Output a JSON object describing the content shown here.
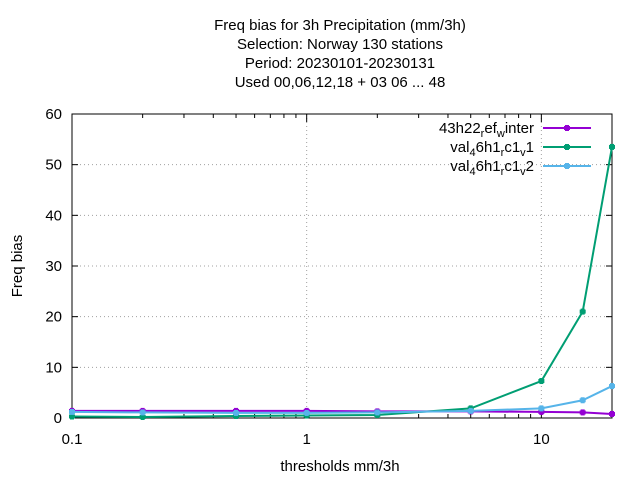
{
  "chart_data": {
    "type": "line",
    "title_lines": [
      "Freq bias  for 3h Precipitation (mm/3h)",
      "Selection: Norway    130 stations",
      "Period: 20230101-20230131",
      "Used  00,06,12,18  + 03 06 ... 48"
    ],
    "xlabel": "thresholds mm/3h",
    "ylabel": "Freq bias",
    "x_scale": "log",
    "xlim": [
      0.1,
      20
    ],
    "ylim": [
      0,
      60
    ],
    "x_ticks": [
      {
        "value": 0.1,
        "label": "0.1"
      },
      {
        "value": 1,
        "label": "1"
      },
      {
        "value": 10,
        "label": "10"
      }
    ],
    "y_ticks": [
      {
        "value": 0,
        "label": "0"
      },
      {
        "value": 10,
        "label": "10"
      },
      {
        "value": 20,
        "label": "20"
      },
      {
        "value": 30,
        "label": "30"
      },
      {
        "value": 40,
        "label": "40"
      },
      {
        "value": 50,
        "label": "50"
      },
      {
        "value": 60,
        "label": "60"
      }
    ],
    "grid": true,
    "legend_position": "top-right",
    "x": [
      0.1,
      0.2,
      0.5,
      1,
      2,
      5,
      10,
      15,
      20
    ],
    "series": [
      {
        "legend": [
          {
            "text": "43h22",
            "sub": false
          },
          {
            "text": "r",
            "sub": true
          },
          {
            "text": "ef",
            "sub": false
          },
          {
            "text": "w",
            "sub": true
          },
          {
            "text": "inter",
            "sub": false
          }
        ],
        "color": "#9400d3",
        "values": [
          1.4,
          1.4,
          1.4,
          1.4,
          1.3,
          1.3,
          1.2,
          1.1,
          0.8
        ]
      },
      {
        "legend": [
          {
            "text": "val",
            "sub": false
          },
          {
            "text": "4",
            "sub": true
          },
          {
            "text": "6h1",
            "sub": false
          },
          {
            "text": "r",
            "sub": true
          },
          {
            "text": "c1",
            "sub": false
          },
          {
            "text": "v",
            "sub": true
          },
          {
            "text": "1",
            "sub": false
          }
        ],
        "color": "#009e73",
        "values": [
          0.3,
          0.2,
          0.4,
          0.5,
          0.6,
          1.9,
          7.3,
          21.0,
          53.5
        ]
      },
      {
        "legend": [
          {
            "text": "val",
            "sub": false
          },
          {
            "text": "4",
            "sub": true
          },
          {
            "text": "6h1",
            "sub": false
          },
          {
            "text": "r",
            "sub": true
          },
          {
            "text": "c1",
            "sub": false
          },
          {
            "text": "v",
            "sub": true
          },
          {
            "text": "2",
            "sub": false
          }
        ],
        "color": "#56b4e9",
        "values": [
          1.2,
          1.1,
          1.0,
          1.0,
          1.1,
          1.4,
          1.9,
          3.5,
          6.3
        ]
      }
    ]
  }
}
